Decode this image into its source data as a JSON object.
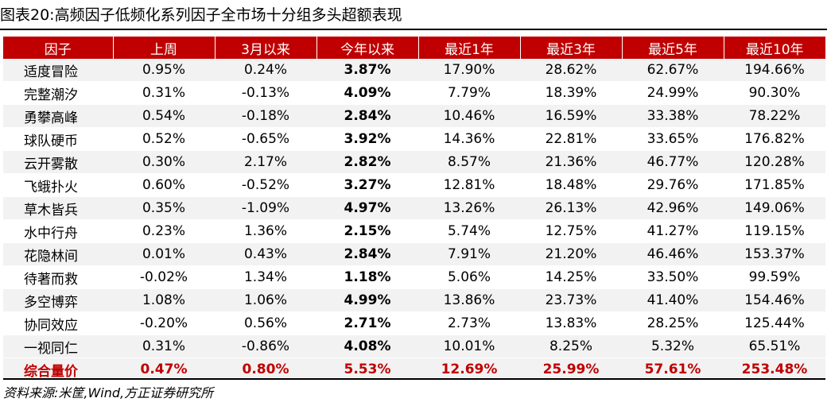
{
  "title": "图表20:高频因子低频化系列因子全市场十分组多头超额表现",
  "table": {
    "headers": [
      "因子",
      "上周",
      "3月以来",
      "今年以来",
      "最近1年",
      "最近3年",
      "最近5年",
      "最近10年"
    ],
    "rows": [
      [
        "适度冒险",
        "0.95%",
        "0.24%",
        "3.87%",
        "17.90%",
        "28.62%",
        "62.67%",
        "194.66%"
      ],
      [
        "完整潮汐",
        "0.31%",
        "-0.13%",
        "4.09%",
        "7.79%",
        "18.39%",
        "24.99%",
        "90.30%"
      ],
      [
        "勇攀高峰",
        "0.54%",
        "-0.18%",
        "2.84%",
        "10.46%",
        "16.59%",
        "33.38%",
        "78.22%"
      ],
      [
        "球队硬币",
        "0.52%",
        "-0.65%",
        "3.92%",
        "14.36%",
        "22.81%",
        "33.65%",
        "176.82%"
      ],
      [
        "云开雾散",
        "0.30%",
        "2.17%",
        "2.82%",
        "8.57%",
        "21.36%",
        "46.77%",
        "120.28%"
      ],
      [
        "飞蛾扑火",
        "0.60%",
        "-0.52%",
        "3.27%",
        "12.81%",
        "18.48%",
        "29.76%",
        "171.85%"
      ],
      [
        "草木皆兵",
        "0.35%",
        "-1.09%",
        "4.97%",
        "13.26%",
        "26.13%",
        "42.96%",
        "149.06%"
      ],
      [
        "水中行舟",
        "0.23%",
        "1.36%",
        "2.15%",
        "5.74%",
        "12.75%",
        "41.27%",
        "119.15%"
      ],
      [
        "花隐林间",
        "0.01%",
        "0.43%",
        "2.84%",
        "7.91%",
        "21.20%",
        "46.46%",
        "153.37%"
      ],
      [
        "待著而救",
        "-0.02%",
        "1.34%",
        "1.18%",
        "5.06%",
        "14.25%",
        "33.50%",
        "99.59%"
      ],
      [
        "多空博弈",
        "1.08%",
        "1.06%",
        "4.99%",
        "13.86%",
        "23.73%",
        "41.40%",
        "154.46%"
      ],
      [
        "协同效应",
        "-0.20%",
        "0.56%",
        "2.71%",
        "2.73%",
        "13.83%",
        "28.25%",
        "125.44%"
      ],
      [
        "一视同仁",
        "0.31%",
        "-0.86%",
        "4.08%",
        "10.01%",
        "8.25%",
        "5.32%",
        "65.51%"
      ]
    ],
    "total": [
      "综合量价",
      "0.47%",
      "0.80%",
      "5.53%",
      "12.69%",
      "25.99%",
      "57.61%",
      "253.48%"
    ]
  },
  "source": "资料来源:米筐,Wind,方正证券研究所",
  "colors": {
    "header_bg": "#c00000",
    "header_text": "#ffffff",
    "zebra_bg": "#f2f2f2",
    "total_text": "#c00000"
  }
}
